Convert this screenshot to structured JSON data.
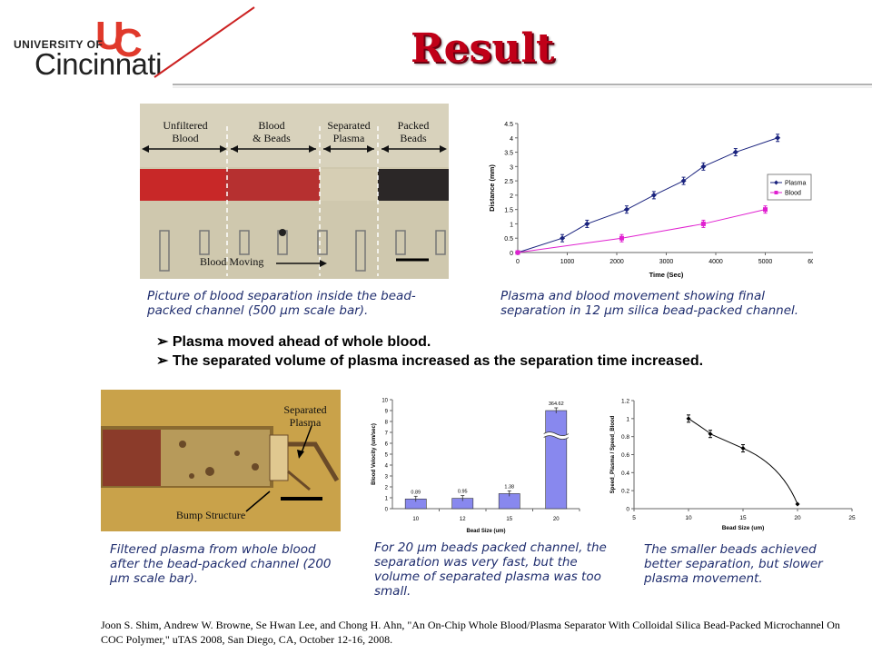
{
  "header": {
    "logo_univ": "UNIVERSITY OF",
    "logo_city": "Cincinnati",
    "title": "Result"
  },
  "photo1": {
    "labels": [
      "Unfiltered\nBlood",
      "Blood\n& Beads",
      "Separated\nPlasma",
      "Packed\nBeads"
    ],
    "moving_label": "Blood Moving",
    "caption": "Picture of blood separation inside the bead-packed channel (500 µm scale bar)."
  },
  "chart1_caption": "Plasma and blood movement showing final separation in 12 µm silica bead-packed channel.",
  "bullets": [
    "Plasma moved ahead of whole blood.",
    "The separated volume of plasma increased as the separation time increased."
  ],
  "photo2": {
    "label_plasma": "Separated\nPlasma",
    "label_bump": "Bump Structure",
    "caption": "Filtered plasma from whole blood after the bead-packed channel (200 µm scale bar)."
  },
  "chart2_caption": "For 20 µm beads packed channel, the separation was very fast, but the volume of separated plasma was too small.",
  "chart3_caption": "The smaller beads achieved better separation, but slower plasma movement.",
  "reference": "Joon S. Shim, Andrew W. Browne, Se Hwan Lee, and Chong H. Ahn, \"An On-Chip Whole Blood/Plasma Separator With Colloidal Silica Bead-Packed Microchannel On COC Polymer,\" uTAS 2008, San Diego, CA, October 12-16, 2008.",
  "chart_data": [
    {
      "type": "line",
      "xlabel": "Time (Sec)",
      "ylabel": "Distance (mm)",
      "xlim": [
        0,
        6000
      ],
      "ylim": [
        0,
        4.5
      ],
      "xticks": [
        "0",
        "1000",
        "2000",
        "3000",
        "4000",
        "5000",
        "6000"
      ],
      "yticks": [
        "0",
        "0.5",
        "1",
        "1.5",
        "2",
        "2.5",
        "3",
        "3.5",
        "4",
        "4.5"
      ],
      "legend": "right",
      "series": [
        {
          "name": "Plasma",
          "color": "#1a237e",
          "marker": "diamond",
          "x": [
            0,
            900,
            1400,
            2200,
            2750,
            3350,
            3750,
            4400,
            5250
          ],
          "y": [
            0,
            0.5,
            1.0,
            1.5,
            2.0,
            2.5,
            3.0,
            3.5,
            4.0
          ]
        },
        {
          "name": "Blood",
          "color": "#e020d0",
          "marker": "square",
          "x": [
            0,
            2100,
            3750,
            5000
          ],
          "y": [
            0,
            0.5,
            1.0,
            1.5
          ]
        }
      ]
    },
    {
      "type": "bar",
      "xlabel": "Bead Size (um)",
      "ylabel": "Blood Velocity (um/sec)",
      "ylim": [
        0,
        10
      ],
      "yticks": [
        "0",
        "1",
        "2",
        "3",
        "4",
        "5",
        "6",
        "7",
        "8",
        "9",
        "10"
      ],
      "categories": [
        "10",
        "12",
        "15",
        "20"
      ],
      "values": [
        0.89,
        0.95,
        1.38,
        364.62
      ],
      "data_labels": [
        "0.89",
        "0.95",
        "1.38",
        "364.62"
      ],
      "color": "#8888ee",
      "axis_break": true
    },
    {
      "type": "line",
      "xlabel": "Bead Size (um)",
      "ylabel": "Speed_Plasma / Speed_Blood",
      "xlim": [
        5,
        25
      ],
      "ylim": [
        0,
        1.2
      ],
      "xticks": [
        "5",
        "10",
        "15",
        "20",
        "25"
      ],
      "yticks": [
        "0",
        "0.2",
        "0.4",
        "0.6",
        "0.8",
        "1",
        "1.2"
      ],
      "series": [
        {
          "color": "#000000",
          "x": [
            10,
            12,
            15,
            20
          ],
          "y": [
            1.0,
            0.83,
            0.67,
            0.05
          ]
        }
      ]
    }
  ]
}
